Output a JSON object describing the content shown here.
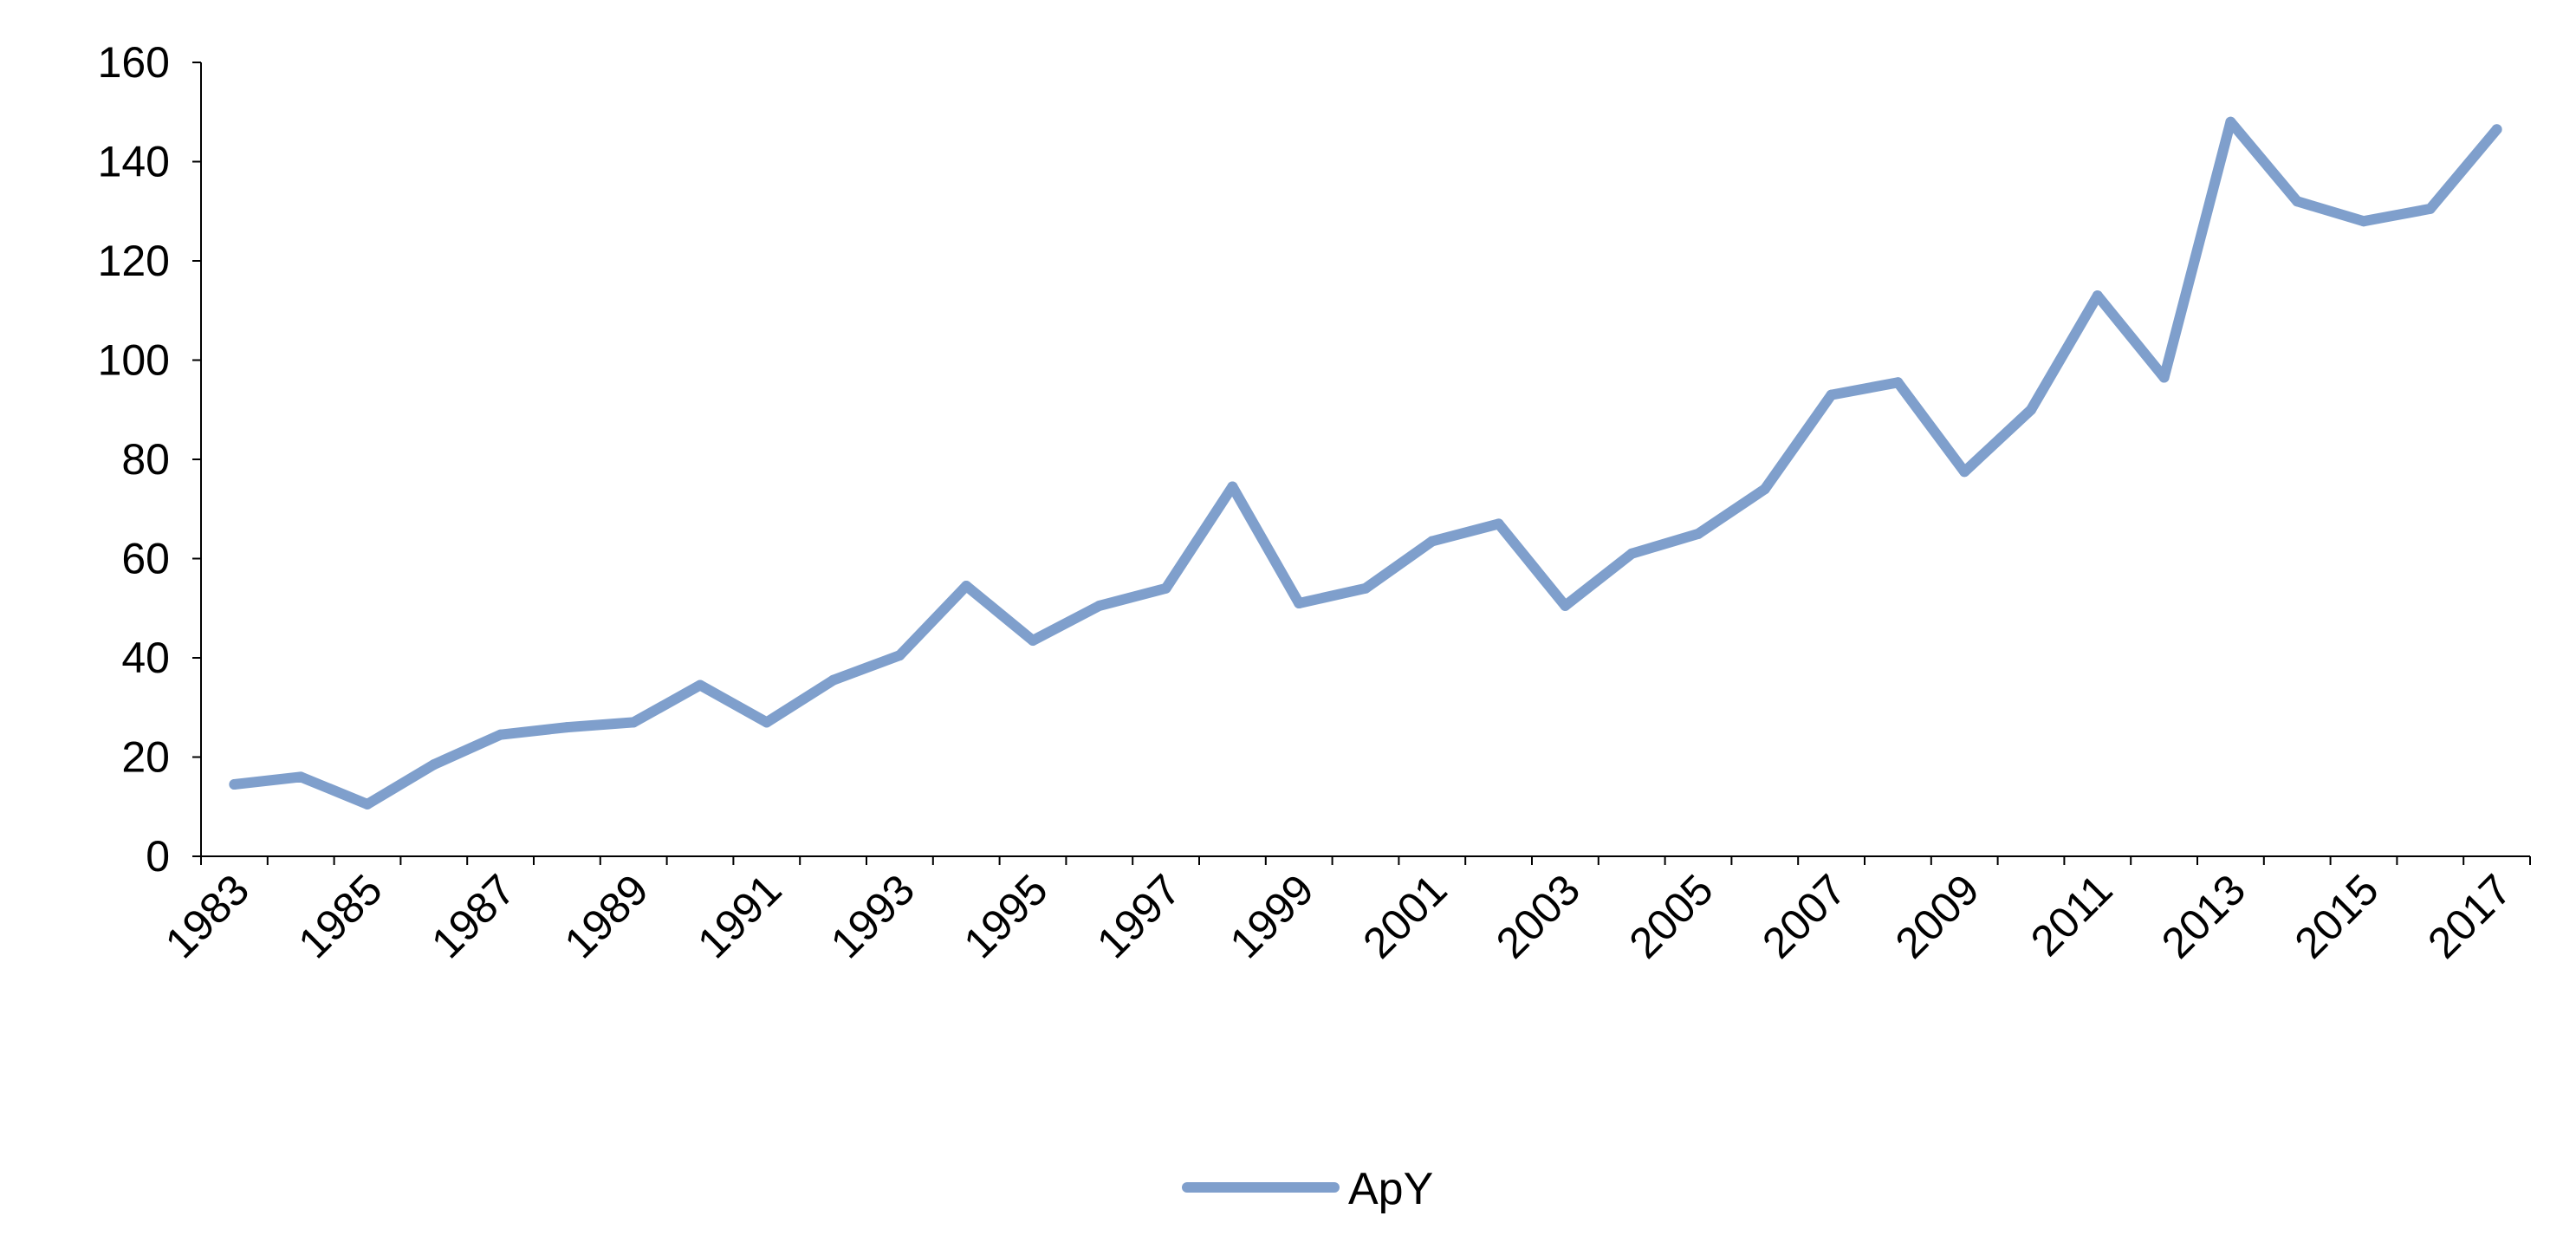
{
  "chart_data": {
    "type": "line",
    "title": "",
    "xlabel": "",
    "ylabel": "",
    "x": [
      "1983",
      "1984",
      "1985",
      "1986",
      "1987",
      "1988",
      "1989",
      "1990",
      "1991",
      "1992",
      "1993",
      "1994",
      "1995",
      "1996",
      "1997",
      "1998",
      "1999",
      "2000",
      "2001",
      "2002",
      "2003",
      "2004",
      "2005",
      "2006",
      "2007",
      "2008",
      "2009",
      "2010",
      "2011",
      "2012",
      "2013",
      "2014",
      "2015",
      "2016",
      "2017"
    ],
    "x_tick_labels": [
      "1983",
      "1985",
      "1987",
      "1989",
      "1991",
      "1993",
      "1995",
      "1997",
      "1999",
      "2001",
      "2003",
      "2005",
      "2007",
      "2009",
      "2011",
      "2013",
      "2015",
      "2017"
    ],
    "y_ticks": [
      "0",
      "20",
      "40",
      "60",
      "80",
      "100",
      "120",
      "140",
      "160"
    ],
    "ylim": [
      0,
      160
    ],
    "grid": false,
    "legend_position": "bottom",
    "series": [
      {
        "name": "ApY",
        "color": "#7f9fcc",
        "values": [
          14.5,
          16,
          10.5,
          18.5,
          24.5,
          26,
          27,
          34.5,
          27,
          35.5,
          40.5,
          54.5,
          43.5,
          50.5,
          54,
          74.5,
          51,
          54,
          63.5,
          67,
          50.5,
          61,
          65,
          74,
          93,
          95.5,
          77.5,
          90,
          113,
          96.5,
          148,
          132,
          128,
          130.5,
          146.5
        ]
      }
    ]
  }
}
